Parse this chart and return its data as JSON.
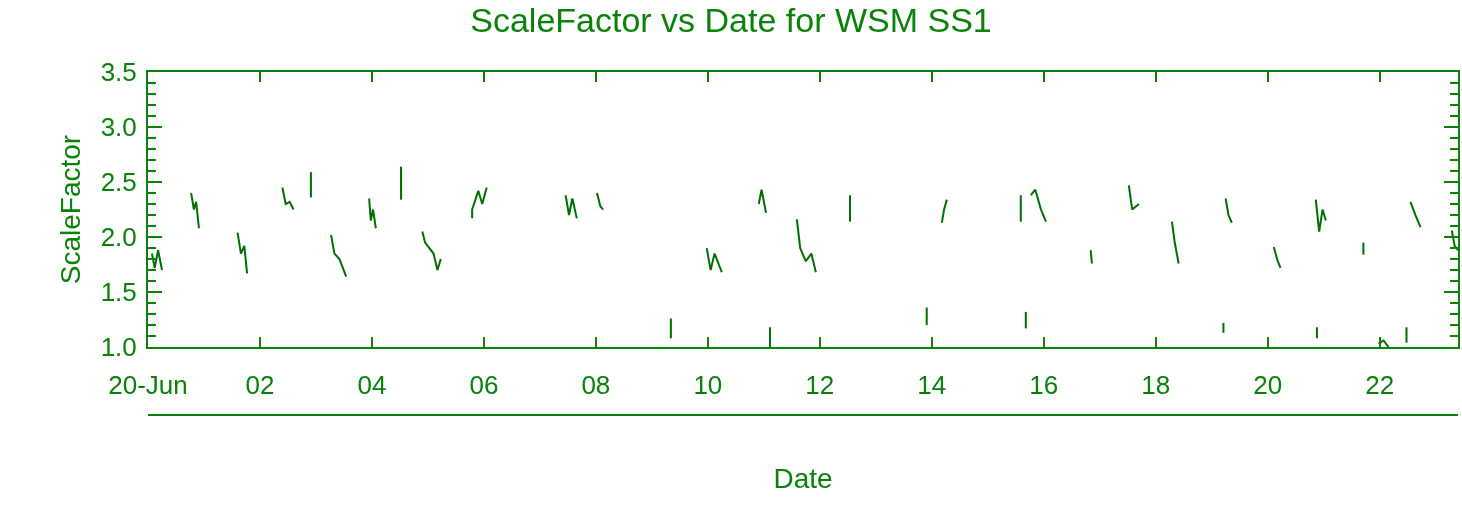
{
  "chart_data": {
    "type": "line",
    "title": "ScaleFactor vs Date for WSM SS1",
    "xlabel": "Date",
    "ylabel": "ScaleFactor",
    "xlim": [
      0,
      23.4
    ],
    "xticks": [
      {
        "value": 0,
        "label": "20-Jun"
      },
      {
        "value": 2,
        "label": "02"
      },
      {
        "value": 4,
        "label": "04"
      },
      {
        "value": 6,
        "label": "06"
      },
      {
        "value": 8,
        "label": "08"
      },
      {
        "value": 10,
        "label": "10"
      },
      {
        "value": 12,
        "label": "12"
      },
      {
        "value": 14,
        "label": "14"
      },
      {
        "value": 16,
        "label": "16"
      },
      {
        "value": 18,
        "label": "18"
      },
      {
        "value": 20,
        "label": "20"
      },
      {
        "value": 22,
        "label": "22"
      }
    ],
    "ylim": [
      1,
      3.5
    ],
    "yticks": [
      {
        "value": 1,
        "label": "1.0"
      },
      {
        "value": 1.1,
        "label": null
      },
      {
        "value": 1.2,
        "label": null
      },
      {
        "value": 1.3,
        "label": null
      },
      {
        "value": 1.4,
        "label": null
      },
      {
        "value": 1.5,
        "label": "1.5"
      },
      {
        "value": 1.6,
        "label": null
      },
      {
        "value": 1.7,
        "label": null
      },
      {
        "value": 1.8,
        "label": null
      },
      {
        "value": 1.9,
        "label": null
      },
      {
        "value": 2,
        "label": "2.0"
      },
      {
        "value": 2.1,
        "label": null
      },
      {
        "value": 2.2,
        "label": null
      },
      {
        "value": 2.3,
        "label": null
      },
      {
        "value": 2.4,
        "label": null
      },
      {
        "value": 2.5,
        "label": "2.5"
      },
      {
        "value": 2.6,
        "label": null
      },
      {
        "value": 2.7,
        "label": null
      },
      {
        "value": 2.8,
        "label": null
      },
      {
        "value": 2.9,
        "label": null
      },
      {
        "value": 3,
        "label": "3.0"
      },
      {
        "value": 3.1,
        "label": null
      },
      {
        "value": 3.2,
        "label": null
      },
      {
        "value": 3.3,
        "label": null
      },
      {
        "value": 3.4,
        "label": null
      },
      {
        "value": 3.5,
        "label": "3.5"
      }
    ],
    "grid": false,
    "series": [
      {
        "color": "#006f00",
        "x": [
          0.07,
          0.12,
          0.18,
          0.25,
          null,
          0.77,
          0.82,
          0.86,
          0.91,
          null,
          1.6,
          1.66,
          1.72,
          1.77,
          null,
          2.4,
          2.46,
          2.53,
          2.6,
          null,
          2.91,
          2.91,
          null,
          3.27,
          3.33,
          3.42,
          3.54,
          null,
          3.95,
          3.98,
          4.02,
          4.07,
          null,
          4.52,
          4.52,
          null,
          4.9,
          4.95,
          5.1,
          5.17,
          5.23,
          null,
          5.79,
          5.79,
          5.9,
          5.97,
          6.05,
          null,
          7.46,
          7.52,
          7.58,
          7.66,
          null,
          8.02,
          8.08,
          8.13,
          null,
          9.34,
          9.34,
          null,
          9.98,
          10.05,
          10.12,
          10.25,
          null,
          10.91,
          10.96,
          11.04,
          null,
          11.11,
          11.11,
          null,
          11.59,
          11.65,
          11.75,
          11.85,
          11.93,
          null,
          12.54,
          12.54,
          null,
          13.91,
          13.91,
          null,
          14.18,
          14.22,
          14.27,
          null,
          15.59,
          15.59,
          null,
          15.68,
          15.68,
          null,
          15.77,
          15.85,
          15.95,
          16.04,
          null,
          16.84,
          16.86,
          null,
          17.52,
          17.58,
          17.7,
          null,
          18.29,
          18.34,
          18.41,
          null,
          19.21,
          19.21,
          null,
          19.25,
          19.3,
          19.36,
          null,
          20.11,
          20.18,
          20.23,
          null,
          20.86,
          20.92,
          20.98,
          21.04,
          null,
          20.88,
          20.88,
          null,
          21.71,
          21.71,
          null,
          21.98,
          22.07,
          22.16,
          null,
          22.48,
          22.48,
          null,
          22.55,
          22.64,
          22.73,
          null,
          23.29,
          23.34,
          23.4
        ],
        "values": [
          1.85,
          1.72,
          1.88,
          1.7,
          null,
          2.4,
          2.25,
          2.32,
          2.08,
          null,
          2.04,
          1.85,
          1.92,
          1.67,
          null,
          2.45,
          2.3,
          2.32,
          2.25,
          null,
          2.59,
          2.36,
          null,
          2.02,
          1.85,
          1.8,
          1.64,
          null,
          2.35,
          2.15,
          2.25,
          2.08,
          null,
          2.64,
          2.34,
          null,
          2.05,
          1.95,
          1.85,
          1.7,
          1.8,
          null,
          2.17,
          2.25,
          2.42,
          2.3,
          2.45,
          null,
          2.38,
          2.2,
          2.35,
          2.17,
          null,
          2.4,
          2.28,
          2.25,
          null,
          1.26,
          1.08,
          null,
          1.9,
          1.7,
          1.85,
          1.68,
          null,
          2.3,
          2.43,
          2.22,
          null,
          1.18,
          1.0,
          null,
          2.16,
          1.9,
          1.78,
          1.85,
          1.68,
          null,
          2.38,
          2.14,
          null,
          1.36,
          1.2,
          null,
          2.13,
          2.25,
          2.34,
          null,
          2.38,
          2.14,
          null,
          1.32,
          1.17,
          null,
          2.38,
          2.43,
          2.25,
          2.14,
          null,
          1.88,
          1.76,
          null,
          2.47,
          2.25,
          2.3,
          null,
          2.14,
          1.95,
          1.76,
          null,
          1.22,
          1.13,
          null,
          2.35,
          2.2,
          2.13,
          null,
          1.91,
          1.78,
          1.72,
          null,
          2.34,
          2.05,
          2.25,
          2.15,
          null,
          1.18,
          1.08,
          null,
          1.95,
          1.84,
          null,
          1.03,
          1.06,
          1.0,
          null,
          1.18,
          1.04,
          null,
          2.32,
          2.2,
          2.09,
          null,
          2.06,
          1.92,
          1.88
        ]
      }
    ]
  }
}
